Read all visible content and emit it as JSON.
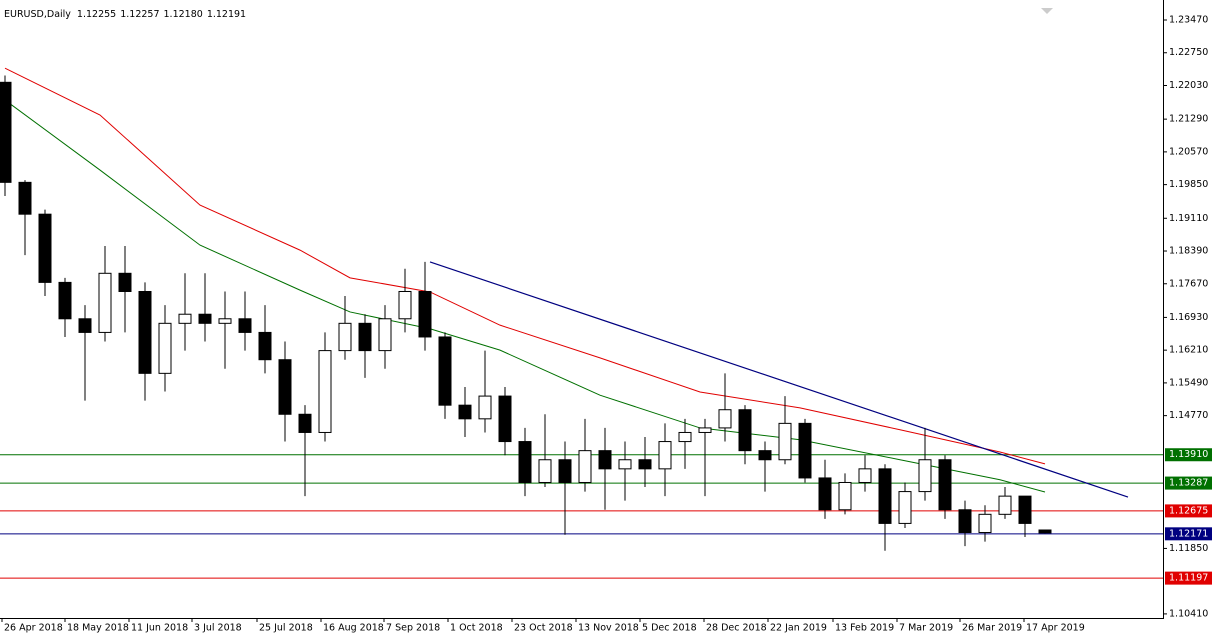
{
  "chart_data": {
    "type": "candlestick",
    "title": "EURUSD,Daily",
    "last_labels": [
      "1.12255",
      "1.12257",
      "1.12180",
      "1.12191"
    ],
    "x": [
      0,
      1,
      2,
      3,
      4,
      5,
      6,
      7,
      8,
      9,
      10,
      11,
      12,
      13,
      14,
      15,
      16,
      17,
      18,
      19,
      20,
      21,
      22,
      23,
      24,
      25,
      26,
      27,
      28,
      29,
      30,
      31,
      32,
      33,
      34,
      35,
      36,
      37,
      38,
      39,
      40,
      41,
      42,
      43,
      44,
      45,
      46,
      47,
      48,
      49,
      50,
      51,
      52
    ],
    "open": [
      1.221,
      1.199,
      1.192,
      1.177,
      1.169,
      1.166,
      1.179,
      1.175,
      1.157,
      1.168,
      1.17,
      1.168,
      1.169,
      1.166,
      1.16,
      1.148,
      1.144,
      1.162,
      1.168,
      1.162,
      1.169,
      1.175,
      1.165,
      1.15,
      1.147,
      1.152,
      1.142,
      1.133,
      1.138,
      1.133,
      1.14,
      1.136,
      1.138,
      1.136,
      1.142,
      1.144,
      1.145,
      1.149,
      1.14,
      1.138,
      1.146,
      1.134,
      1.127,
      1.133,
      1.136,
      1.124,
      1.131,
      1.138,
      1.127,
      1.122,
      1.126,
      1.13,
      1.12255
    ],
    "high": [
      1.2225,
      1.1995,
      1.193,
      1.178,
      1.172,
      1.185,
      1.185,
      1.177,
      1.172,
      1.179,
      1.179,
      1.175,
      1.175,
      1.172,
      1.164,
      1.15,
      1.166,
      1.174,
      1.17,
      1.172,
      1.18,
      1.1815,
      1.166,
      1.154,
      1.162,
      1.154,
      1.145,
      1.148,
      1.142,
      1.147,
      1.145,
      1.142,
      1.143,
      1.146,
      1.147,
      1.147,
      1.157,
      1.15,
      1.142,
      1.152,
      1.147,
      1.138,
      1.135,
      1.139,
      1.137,
      1.133,
      1.145,
      1.139,
      1.129,
      1.128,
      1.132,
      1.13,
      1.12257
    ],
    "low": [
      1.196,
      1.183,
      1.174,
      1.165,
      1.151,
      1.164,
      1.166,
      1.151,
      1.153,
      1.162,
      1.164,
      1.158,
      1.162,
      1.157,
      1.142,
      1.13,
      1.142,
      1.16,
      1.156,
      1.158,
      1.166,
      1.162,
      1.147,
      1.143,
      1.144,
      1.139,
      1.13,
      1.132,
      1.1215,
      1.131,
      1.127,
      1.129,
      1.132,
      1.13,
      1.136,
      1.13,
      1.142,
      1.137,
      1.131,
      1.137,
      1.133,
      1.125,
      1.126,
      1.131,
      1.118,
      1.123,
      1.129,
      1.125,
      1.119,
      1.12,
      1.125,
      1.121,
      1.1218
    ],
    "close": [
      1.199,
      1.192,
      1.177,
      1.169,
      1.166,
      1.179,
      1.175,
      1.157,
      1.168,
      1.17,
      1.168,
      1.169,
      1.166,
      1.16,
      1.148,
      1.144,
      1.162,
      1.168,
      1.162,
      1.169,
      1.175,
      1.165,
      1.15,
      1.147,
      1.152,
      1.142,
      1.133,
      1.138,
      1.133,
      1.14,
      1.136,
      1.138,
      1.136,
      1.142,
      1.144,
      1.145,
      1.149,
      1.14,
      1.138,
      1.146,
      1.134,
      1.127,
      1.133,
      1.136,
      1.124,
      1.131,
      1.138,
      1.127,
      1.122,
      1.126,
      1.13,
      1.124,
      1.12191
    ],
    "ma_x": [
      0,
      4.75,
      9.75,
      14.75,
      17.25,
      21.25,
      24.75,
      29.75,
      34.75,
      39.75,
      44.75,
      49.75,
      52
    ],
    "moving_averages": [
      {
        "color": "#e00000",
        "values": [
          1.2241,
          1.2138,
          1.194,
          1.1841,
          1.178,
          1.1749,
          1.1676,
          1.1604,
          1.1529,
          1.1494,
          1.1446,
          1.1397,
          1.1371
        ]
      },
      {
        "color": "#007000",
        "values": [
          1.2171,
          1.2017,
          1.1852,
          1.1753,
          1.1705,
          1.1668,
          1.1621,
          1.1522,
          1.145,
          1.1424,
          1.138,
          1.1336,
          1.1309
        ]
      }
    ],
    "trendline": {
      "color": "#000080",
      "x": [
        21.25,
        56.15
      ],
      "values": [
        1.1815,
        1.1298
      ]
    },
    "levels": [
      {
        "value": 1.1391,
        "label": "1.13910",
        "color": "#007000"
      },
      {
        "value": 1.13287,
        "label": "1.13287",
        "color": "#007000"
      },
      {
        "value": 1.12675,
        "label": "1.12675",
        "color": "#e00000"
      },
      {
        "value": 1.12171,
        "label": "1.12171",
        "color": "#000080"
      },
      {
        "value": 1.11197,
        "label": "1.11197",
        "color": "#e00000"
      }
    ],
    "xlim": [
      -0.25,
      57.9
    ],
    "ylim": [
      1.1032,
      1.238
    ],
    "yticks": [
      {
        "value": 1.2347,
        "label": "1.23470"
      },
      {
        "value": 1.2275,
        "label": "1.22750"
      },
      {
        "value": 1.2203,
        "label": "1.22030"
      },
      {
        "value": 1.2129,
        "label": "1.21290"
      },
      {
        "value": 1.2057,
        "label": "1.20570"
      },
      {
        "value": 1.1985,
        "label": "1.19850"
      },
      {
        "value": 1.1911,
        "label": "1.19110"
      },
      {
        "value": 1.1839,
        "label": "1.18390"
      },
      {
        "value": 1.1767,
        "label": "1.17670"
      },
      {
        "value": 1.1693,
        "label": "1.16930"
      },
      {
        "value": 1.1621,
        "label": "1.16210"
      },
      {
        "value": 1.1549,
        "label": "1.15490"
      },
      {
        "value": 1.1477,
        "label": "1.14770"
      },
      {
        "value": 1.1185,
        "label": "1.11850"
      },
      {
        "value": 1.1041,
        "label": "1.10410"
      }
    ],
    "xticks": [
      {
        "value": -0.15,
        "label": "26 Apr 2018"
      },
      {
        "value": 3,
        "label": "18 May 2018"
      },
      {
        "value": 6.2,
        "label": "11 Jun 2018"
      },
      {
        "value": 9.35,
        "label": "3 Jul 2018"
      },
      {
        "value": 12.6,
        "label": "25 Jul 2018"
      },
      {
        "value": 15.8,
        "label": "16 Aug 2018"
      },
      {
        "value": 18.95,
        "label": "7 Sep 2018"
      },
      {
        "value": 22.15,
        "label": "1 Oct 2018"
      },
      {
        "value": 25.35,
        "label": "23 Oct 2018"
      },
      {
        "value": 28.55,
        "label": "13 Nov 2018"
      },
      {
        "value": 31.75,
        "label": "5 Dec 2018"
      },
      {
        "value": 34.95,
        "label": "28 Dec 2018"
      },
      {
        "value": 38.15,
        "label": "22 Jan 2019"
      },
      {
        "value": 41.4,
        "label": "13 Feb 2019"
      },
      {
        "value": 44.6,
        "label": "7 Mar 2019"
      },
      {
        "value": 47.75,
        "label": "26 Mar 2019"
      },
      {
        "value": 50.95,
        "label": "17 Apr 2019"
      }
    ]
  }
}
